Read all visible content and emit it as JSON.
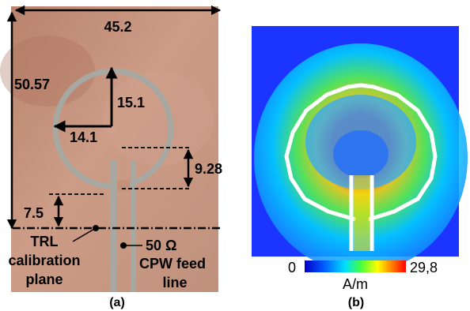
{
  "panel_a": {
    "dims": {
      "width": "45.2",
      "height": "50.57",
      "radius_v": "15.1",
      "radius_h": "14.1",
      "gap": "9.28",
      "offset": "7.5"
    },
    "labels": {
      "trl_line1": "TRL",
      "trl_line2": "calibration",
      "trl_line3": "plane",
      "cpw_line1": "50 Ω",
      "cpw_line2": "CPW feed",
      "cpw_line3": "line"
    },
    "caption": "(a)",
    "colors": {
      "substrate": "#c4917a",
      "trace": "#a8a8a2"
    }
  },
  "panel_b": {
    "colorbar": {
      "min": "0",
      "max": "29,8",
      "unit": "A/m"
    },
    "caption": "(b)",
    "colors": {
      "background": "#1e3cff",
      "trace": "#ffffff"
    }
  }
}
